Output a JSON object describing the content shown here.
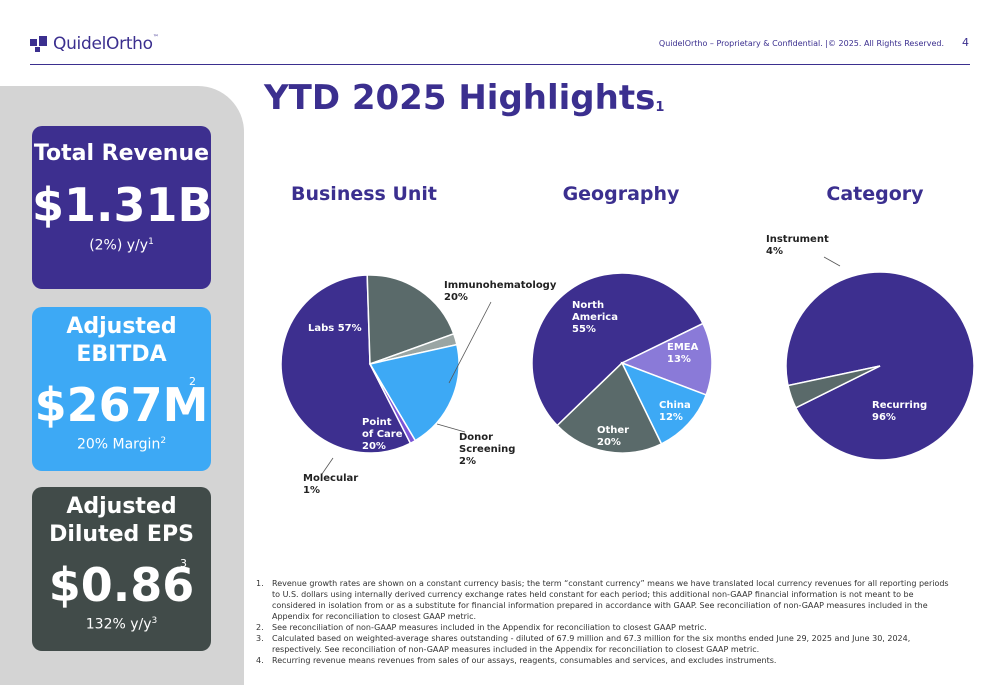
{
  "header": {
    "logo_text": "QuidelOrtho",
    "logo_tm": "™",
    "confidential": "QuidelOrtho – Proprietary & Confidential.  |© 2025. All Rights Reserved.",
    "page_number": "4"
  },
  "title": {
    "text": "YTD 2025 Highlights",
    "footnote": "1"
  },
  "cards": {
    "revenue": {
      "heading": "Total Revenue",
      "value": "$1.31B",
      "sub": "(2%) y/y",
      "sub_note": "1"
    },
    "ebitda": {
      "heading_1": "Adjusted",
      "heading_2": "EBITDA",
      "value": "$267M",
      "value_note": "2",
      "sub": "20% Margin",
      "sub_note": "2"
    },
    "eps": {
      "heading_1": "Adjusted",
      "heading_2": "Diluted EPS",
      "value": "$0.86",
      "value_note": "3",
      "sub": "132% y/y",
      "sub_note": "3"
    }
  },
  "colors": {
    "purple": "#3d2f8f",
    "slate": "#5a6a6a",
    "light_blue": "#3da9f5",
    "lavender": "#8a7ad8",
    "violet": "#7a55d6",
    "grey_light": "#9aa5a3"
  },
  "chart_data": [
    {
      "type": "pie",
      "title": "Business Unit",
      "slices": [
        {
          "label": "Labs 57%",
          "value": 57,
          "color": "#3d2f8f"
        },
        {
          "label": "Immunohematology 20%",
          "value": 20,
          "color": "#5a6a6a"
        },
        {
          "label": "Donor Screening 2%",
          "value": 2,
          "color": "#9aa5a3"
        },
        {
          "label": "Point of Care 20%",
          "value": 20,
          "color": "#3da9f5"
        },
        {
          "label": "Molecular 1%",
          "value": 1,
          "color": "#7a55d6"
        }
      ]
    },
    {
      "type": "pie",
      "title": "Geography",
      "slices": [
        {
          "label": "North America 55%",
          "value": 55,
          "color": "#3d2f8f"
        },
        {
          "label": "EMEA 13%",
          "value": 13,
          "color": "#8a7ad8"
        },
        {
          "label": "China 12%",
          "value": 12,
          "color": "#3da9f5"
        },
        {
          "label": "Other 20%",
          "value": 20,
          "color": "#5a6a6a"
        }
      ]
    },
    {
      "type": "pie",
      "title": "Category",
      "slices": [
        {
          "label": "Recurring 96%",
          "value": 96,
          "color": "#3d2f8f"
        },
        {
          "label": "Instrument 4%",
          "value": 4,
          "color": "#5a6a6a"
        }
      ]
    }
  ],
  "notes": [
    {
      "n": "1.",
      "text": "Revenue growth rates are shown on a constant currency basis; the term “constant currency” means we have translated local currency revenues for all reporting periods to U.S. dollars using internally derived currency exchange rates held constant for each period; this additional non-GAAP financial information is not meant to be considered in isolation from or as a substitute for financial information prepared in accordance with GAAP. See reconciliation of non-GAAP measures included in the Appendix for reconciliation to closest GAAP metric."
    },
    {
      "n": "2.",
      "text": "See reconciliation of non-GAAP measures included in the Appendix for reconciliation to closest GAAP metric."
    },
    {
      "n": "3.",
      "text": "Calculated based on weighted-average shares outstanding - diluted of 67.9 million and 67.3 million for the six months ended June 29, 2025 and June 30, 2024, respectively. See reconciliation of non-GAAP measures included in the Appendix for reconciliation to closest GAAP metric."
    },
    {
      "n": "4.",
      "text": "Recurring revenue means revenues from sales of our assays, reagents, consumables and services, and excludes instruments."
    }
  ]
}
